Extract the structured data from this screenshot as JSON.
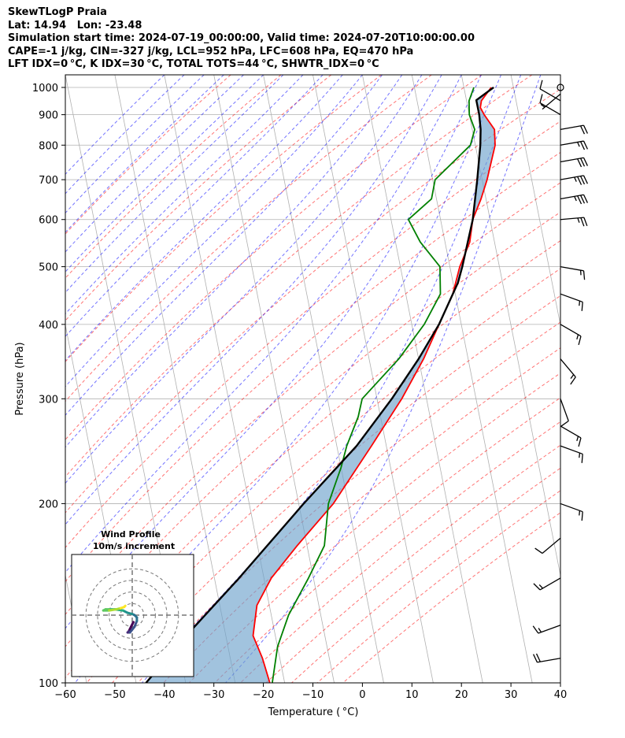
{
  "header": {
    "line1": "SkewTLogP Praia",
    "line2": "Lat: 14.94   Lon: -23.48",
    "line3": "Simulation start time: 2024-07-19_00:00:00, Valid time: 2024-07-20T10:00:00.00",
    "line4": "CAPE=-1 j/kg, CIN=-327 j/kg, LCL=952 hPa, LFC=608 hPa, EQ=470 hPa",
    "line5": "LFT IDX=0 °C, K IDX=30 °C, TOTAL TOTS=44 °C, SHWTR_IDX=0 °C"
  },
  "chart_data": {
    "type": "skewt",
    "xlabel": "Temperature ( °C)",
    "ylabel": "Pressure (hPa)",
    "xlim": [
      -60,
      40
    ],
    "ylim": [
      1050,
      100
    ],
    "y_log_scale": true,
    "grid": true,
    "x_ticks": [
      -60,
      -50,
      -40,
      -30,
      -20,
      -10,
      0,
      10,
      20,
      30,
      40
    ],
    "x_tick_labels": [
      "−60",
      "−50",
      "−40",
      "−30",
      "−20",
      "−10",
      "0",
      "10",
      "20",
      "30",
      "40"
    ],
    "y_ticks": [
      1000,
      900,
      800,
      700,
      600,
      500,
      400,
      300,
      200,
      100
    ],
    "series": [
      {
        "color": "#ff0000",
        "points": [
          [
            1000,
            25.5
          ],
          [
            950,
            23.0
          ],
          [
            925,
            22.5
          ],
          [
            900,
            23.0
          ],
          [
            850,
            24.5
          ],
          [
            800,
            24.0
          ],
          [
            700,
            21.0
          ],
          [
            650,
            19.0
          ],
          [
            600,
            16.5
          ],
          [
            550,
            15.0
          ],
          [
            500,
            12.0
          ],
          [
            450,
            9.5
          ],
          [
            400,
            5.5
          ],
          [
            350,
            1.0
          ],
          [
            300,
            -5.0
          ],
          [
            250,
            -13.0
          ],
          [
            200,
            -23.0
          ],
          [
            170,
            -32.0
          ],
          [
            150,
            -38.5
          ],
          [
            135,
            -42.5
          ],
          [
            120,
            -44.5
          ],
          [
            110,
            -43.5
          ],
          [
            100,
            -43.0
          ]
        ]
      },
      {
        "color": "#008000",
        "points": [
          [
            1000,
            22.0
          ],
          [
            950,
            20.5
          ],
          [
            900,
            20.0
          ],
          [
            850,
            20.5
          ],
          [
            800,
            19.0
          ],
          [
            700,
            10.5
          ],
          [
            650,
            9.0
          ],
          [
            600,
            3.5
          ],
          [
            550,
            5.0
          ],
          [
            500,
            8.0
          ],
          [
            450,
            7.0
          ],
          [
            400,
            2.5
          ],
          [
            350,
            -4.0
          ],
          [
            300,
            -13.0
          ],
          [
            280,
            -14.5
          ],
          [
            250,
            -18.0
          ],
          [
            230,
            -20.0
          ],
          [
            200,
            -24.0
          ],
          [
            170,
            -26.5
          ],
          [
            150,
            -31.0
          ],
          [
            130,
            -36.5
          ],
          [
            115,
            -40.0
          ],
          [
            100,
            -42.5
          ]
        ]
      },
      {
        "color": "#000000",
        "points": [
          [
            1000,
            26.0
          ],
          [
            952,
            22.0
          ],
          [
            900,
            22.0
          ],
          [
            850,
            21.7
          ],
          [
            800,
            21.0
          ],
          [
            700,
            19.0
          ],
          [
            600,
            16.5
          ],
          [
            500,
            12.5
          ],
          [
            470,
            11.0
          ],
          [
            400,
            5.5
          ],
          [
            350,
            0.0
          ],
          [
            300,
            -7.0
          ],
          [
            250,
            -16.0
          ],
          [
            200,
            -29.0
          ],
          [
            150,
            -45.0
          ],
          [
            120,
            -58.0
          ],
          [
            100,
            -68.0
          ]
        ]
      }
    ],
    "winds": [
      {
        "p": 1000,
        "speed_kt": 0
      },
      {
        "p": 975,
        "speed_kt": 5,
        "dir": 230
      },
      {
        "p": 950,
        "speed_kt": 10,
        "dir": 300
      },
      {
        "p": 900,
        "speed_kt": 10,
        "dir": 300
      },
      {
        "p": 850,
        "speed_kt": 20,
        "dir": 80
      },
      {
        "p": 800,
        "speed_kt": 25,
        "dir": 80
      },
      {
        "p": 750,
        "speed_kt": 30,
        "dir": 80
      },
      {
        "p": 700,
        "speed_kt": 35,
        "dir": 80
      },
      {
        "p": 650,
        "speed_kt": 35,
        "dir": 80
      },
      {
        "p": 600,
        "speed_kt": 25,
        "dir": 85
      },
      {
        "p": 500,
        "speed_kt": 15,
        "dir": 100
      },
      {
        "p": 450,
        "speed_kt": 15,
        "dir": 110
      },
      {
        "p": 400,
        "speed_kt": 15,
        "dir": 120
      },
      {
        "p": 350,
        "speed_kt": 15,
        "dir": 140
      },
      {
        "p": 300,
        "speed_kt": 10,
        "dir": 160
      },
      {
        "p": 270,
        "speed_kt": 15,
        "dir": 120
      },
      {
        "p": 250,
        "speed_kt": 15,
        "dir": 110
      },
      {
        "p": 200,
        "speed_kt": 15,
        "dir": 110
      },
      {
        "p": 175,
        "speed_kt": 10,
        "dir": 230
      },
      {
        "p": 150,
        "speed_kt": 15,
        "dir": 240
      },
      {
        "p": 125,
        "speed_kt": 15,
        "dir": 250
      },
      {
        "p": 110,
        "speed_kt": 20,
        "dir": 260
      }
    ],
    "inset": {
      "title": "Wind Profile",
      "subtitle": "10m/s increment",
      "ring_step_ms": 10,
      "hodograph_uv": [
        [
          1,
          -6
        ],
        [
          -1,
          -10
        ],
        [
          -2,
          -12
        ],
        [
          -3,
          -14
        ],
        [
          -4,
          -15
        ],
        [
          -2,
          -15
        ],
        [
          2,
          -10
        ],
        [
          4,
          -5
        ],
        [
          4,
          -2
        ],
        [
          2,
          0
        ],
        [
          0,
          1
        ],
        [
          -4,
          2
        ],
        [
          -8,
          4
        ],
        [
          -15,
          5
        ],
        [
          -20,
          5
        ],
        [
          -23,
          5
        ],
        [
          -25,
          4
        ],
        [
          -20,
          4
        ],
        [
          -14,
          5
        ],
        [
          -10,
          6
        ],
        [
          -7,
          7
        ],
        [
          -6,
          8
        ]
      ]
    }
  }
}
